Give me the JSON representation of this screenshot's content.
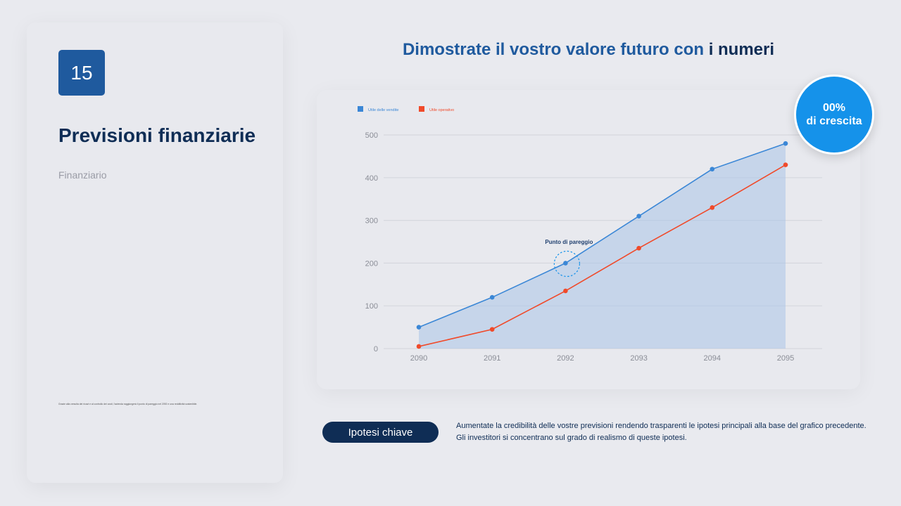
{
  "slide": {
    "number": "15",
    "title": "Previsioni finanziarie",
    "subtitle": "Finanziario",
    "footnote": "Grazie alla crescita dei ricavi e al controllo dei costi, l'azienda raggiungerà il punto di pareggio nel 2092 e una redditività sostenibile."
  },
  "header": {
    "title_part1": "Dimostrate il vostro valore futuro con ",
    "title_part2": "i numeri"
  },
  "badge": {
    "value": "00%",
    "label": "di crescita"
  },
  "key": {
    "button_label": "Ipotesi chiave",
    "line1": "Aumentate la credibilità delle vostre previsioni rendendo trasparenti le ipotesi principali alla base del grafico precedente.",
    "line2": "Gli investitori si concentrano sul grado di realismo di queste ipotesi."
  },
  "chart_data": {
    "type": "area",
    "categories": [
      "2090",
      "2091",
      "2092",
      "2093",
      "2094",
      "2095"
    ],
    "series": [
      {
        "name": "Utile delle vendite",
        "values": [
          50,
          120,
          200,
          310,
          420,
          480
        ],
        "color": "#3b87d6",
        "fill": true
      },
      {
        "name": "Utile operativo",
        "values": [
          5,
          45,
          135,
          235,
          330,
          430
        ],
        "color": "#f04a2a",
        "fill": false
      }
    ],
    "ylim": [
      0,
      500
    ],
    "yticks": [
      "0",
      "100",
      "200",
      "300",
      "400",
      "500"
    ],
    "grid": true,
    "legend": "top-left",
    "annotation": {
      "text": "Punto di pareggio",
      "category": "2092",
      "value": 200
    }
  }
}
